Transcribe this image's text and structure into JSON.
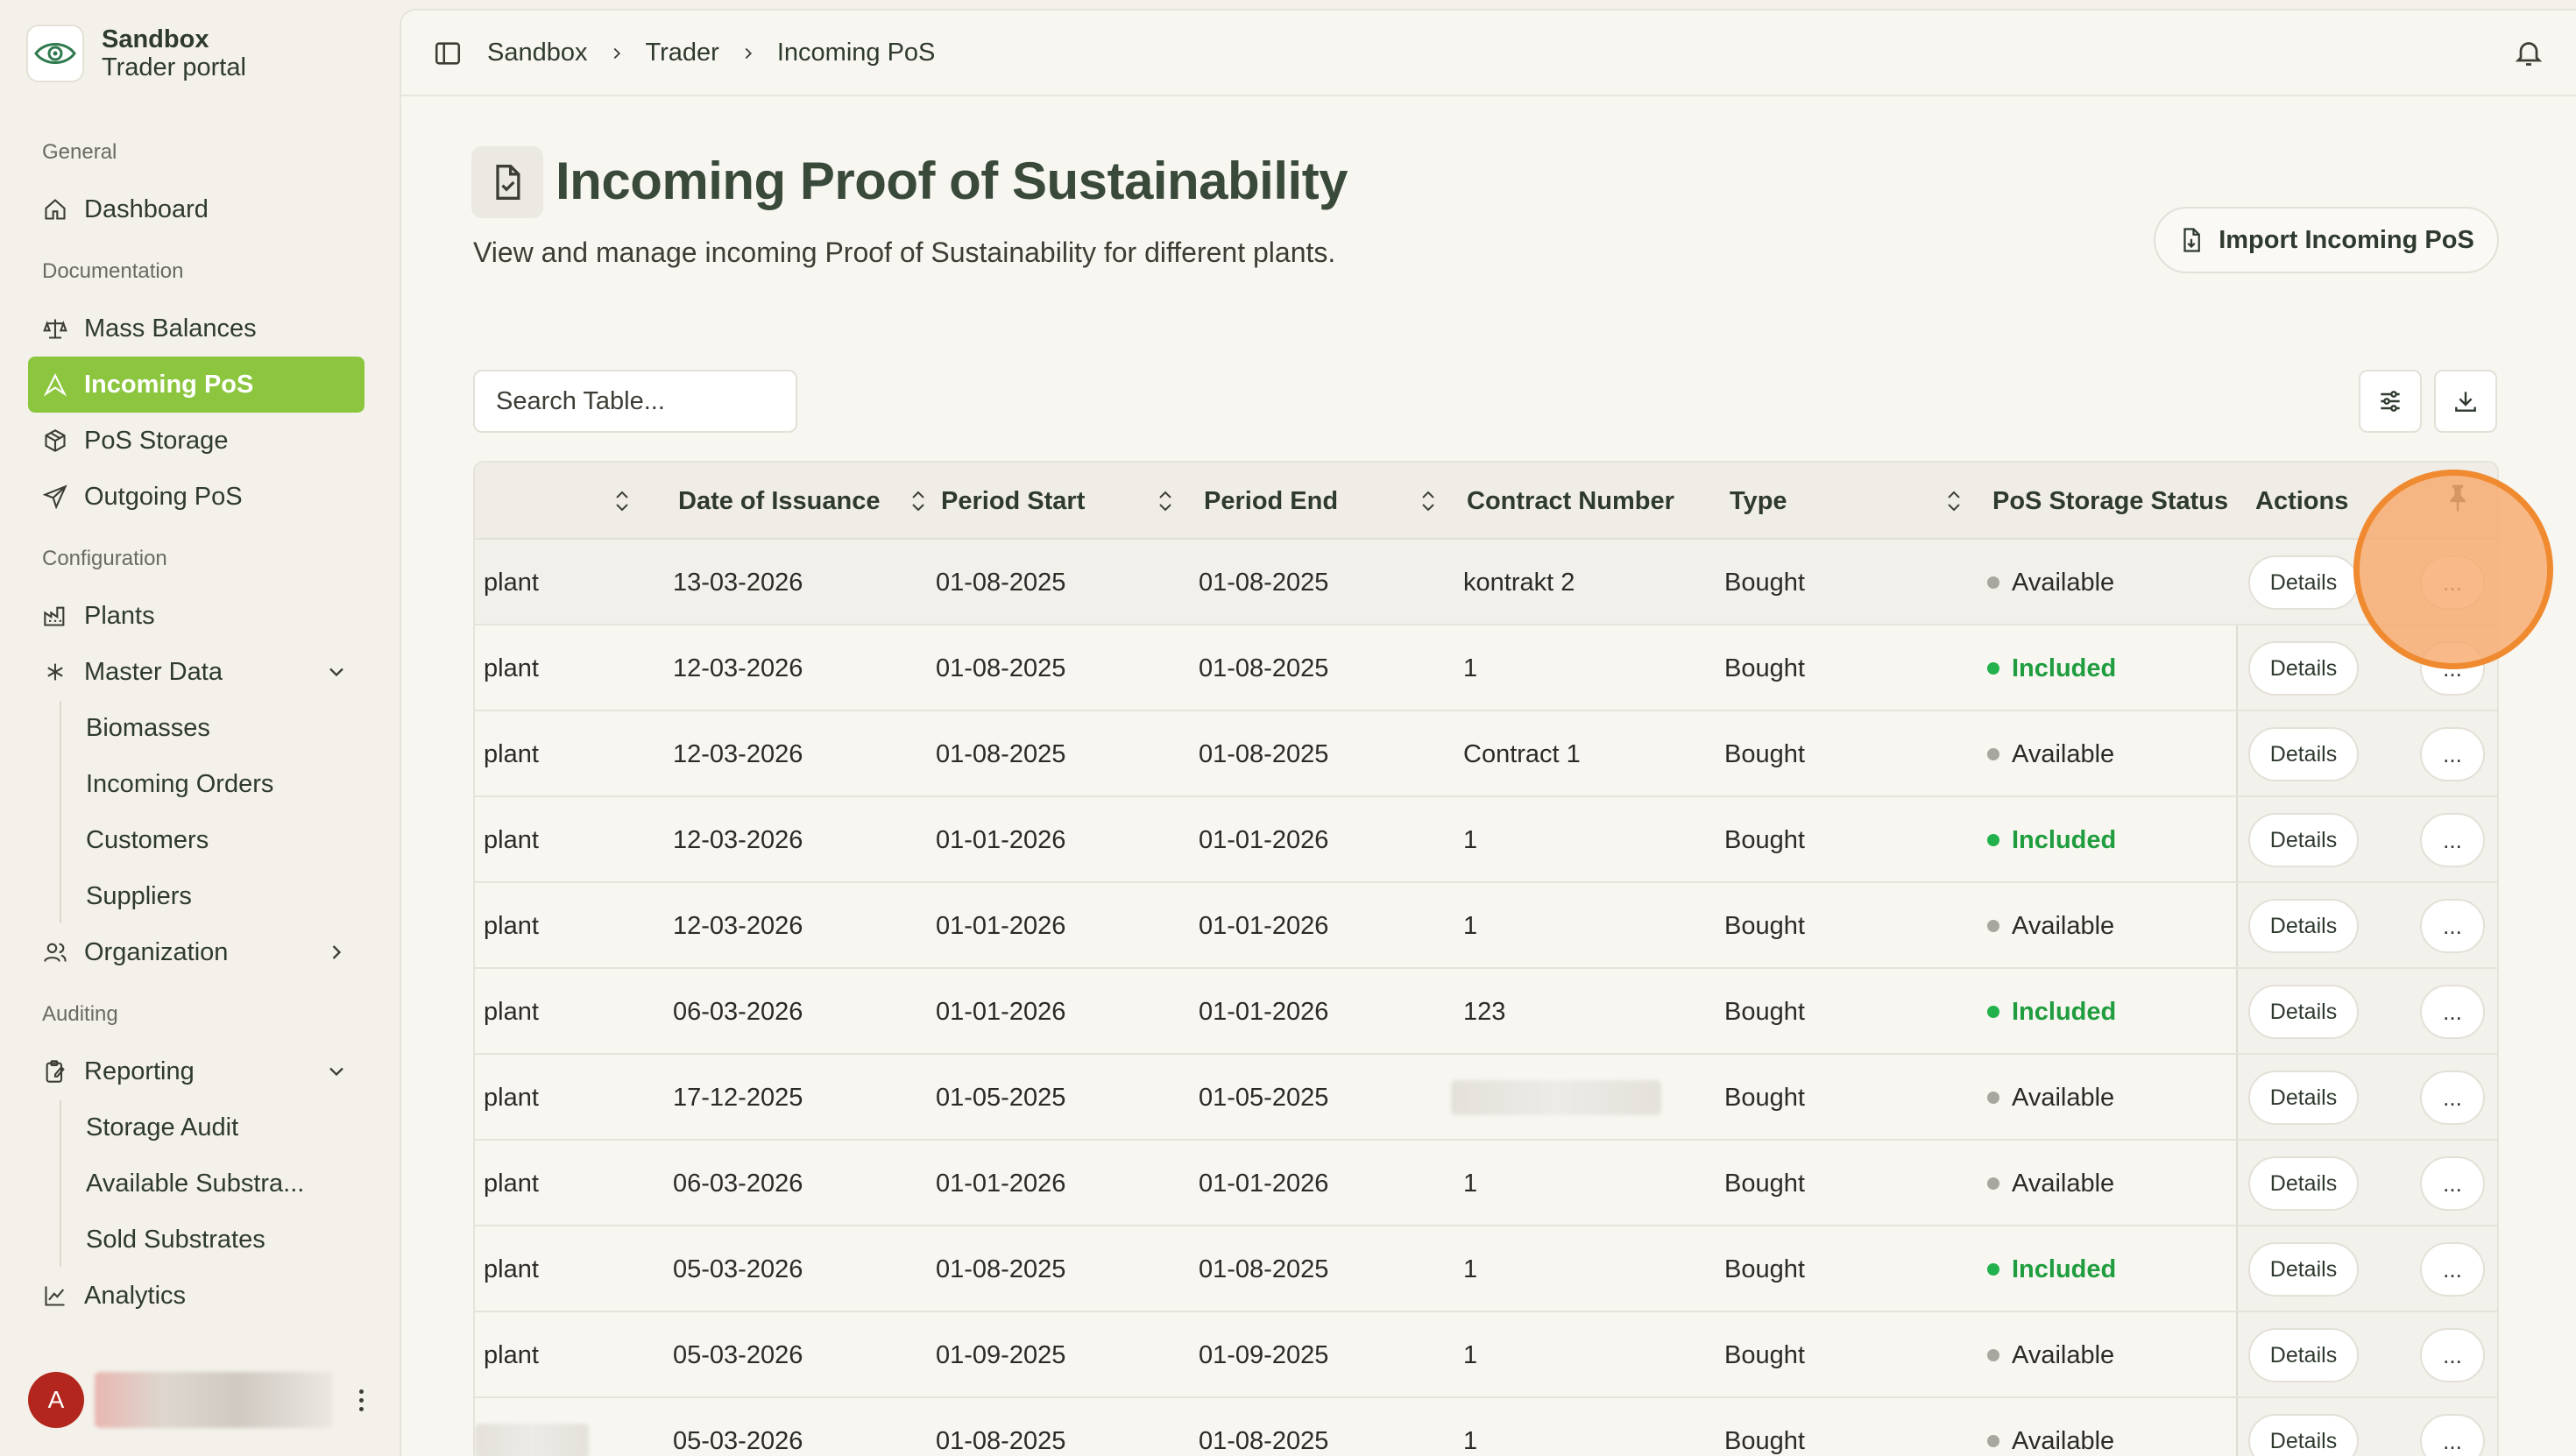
{
  "brand": {
    "name": "Sandbox",
    "subtitle": "Trader portal"
  },
  "sidebar": {
    "sections": {
      "general": "General",
      "documentation": "Documentation",
      "configuration": "Configuration",
      "auditing": "Auditing"
    },
    "items": {
      "dashboard": "Dashboard",
      "mass_balances": "Mass Balances",
      "incoming_pos": "Incoming PoS",
      "pos_storage": "PoS Storage",
      "outgoing_pos": "Outgoing PoS",
      "plants": "Plants",
      "master_data": "Master Data",
      "biomasses": "Biomasses",
      "incoming_orders": "Incoming Orders",
      "customers": "Customers",
      "suppliers": "Suppliers",
      "organization": "Organization",
      "reporting": "Reporting",
      "storage_audit": "Storage Audit",
      "available_substrates": "Available Substra...",
      "sold_substrates": "Sold Substrates",
      "analytics": "Analytics"
    },
    "active_item": "incoming_pos",
    "user_initial": "A"
  },
  "breadcrumb": [
    "Sandbox",
    "Trader",
    "Incoming PoS"
  ],
  "page": {
    "title": "Incoming Proof of Sustainability",
    "subtitle": "View and manage incoming Proof of Sustainability for different plants.",
    "import_button": "Import Incoming PoS"
  },
  "search": {
    "placeholder": "Search Table..."
  },
  "table": {
    "columns": {
      "date_of_issuance": "Date of Issuance",
      "period_start": "Period Start",
      "period_end": "Period End",
      "contract_number": "Contract Number",
      "type": "Type",
      "pos_storage_status": "PoS Storage Status",
      "actions": "Actions"
    },
    "details_label": "Details",
    "more_label": "...",
    "rows": [
      {
        "plant": "plant",
        "issuance": "13-03-2026",
        "start": "01-08-2025",
        "end": "01-08-2025",
        "contract": "kontrakt 2",
        "type": "Bought",
        "status": "Available"
      },
      {
        "plant": "plant",
        "issuance": "12-03-2026",
        "start": "01-08-2025",
        "end": "01-08-2025",
        "contract": "1",
        "type": "Bought",
        "status": "Included"
      },
      {
        "plant": "plant",
        "issuance": "12-03-2026",
        "start": "01-08-2025",
        "end": "01-08-2025",
        "contract": "Contract 1",
        "type": "Bought",
        "status": "Available"
      },
      {
        "plant": "plant",
        "issuance": "12-03-2026",
        "start": "01-01-2026",
        "end": "01-01-2026",
        "contract": "1",
        "type": "Bought",
        "status": "Included"
      },
      {
        "plant": "plant",
        "issuance": "12-03-2026",
        "start": "01-01-2026",
        "end": "01-01-2026",
        "contract": "1",
        "type": "Bought",
        "status": "Available"
      },
      {
        "plant": "plant",
        "issuance": "06-03-2026",
        "start": "01-01-2026",
        "end": "01-01-2026",
        "contract": "123",
        "type": "Bought",
        "status": "Included"
      },
      {
        "plant": "plant",
        "issuance": "17-12-2025",
        "start": "01-05-2025",
        "end": "01-05-2025",
        "contract": "",
        "type": "Bought",
        "status": "Available"
      },
      {
        "plant": "plant",
        "issuance": "06-03-2026",
        "start": "01-01-2026",
        "end": "01-01-2026",
        "contract": "1",
        "type": "Bought",
        "status": "Available"
      },
      {
        "plant": "plant",
        "issuance": "05-03-2026",
        "start": "01-08-2025",
        "end": "01-08-2025",
        "contract": "1",
        "type": "Bought",
        "status": "Included"
      },
      {
        "plant": "plant",
        "issuance": "05-03-2026",
        "start": "01-09-2025",
        "end": "01-09-2025",
        "contract": "1",
        "type": "Bought",
        "status": "Available"
      },
      {
        "plant": "",
        "issuance": "05-03-2026",
        "start": "01-08-2025",
        "end": "01-08-2025",
        "contract": "1",
        "type": "Bought",
        "status": "Available"
      }
    ]
  },
  "colors": {
    "accent": "#8cc63f",
    "included": "#1f9d3f",
    "available_dot": "#a7a7a0",
    "avatar": "#b3261e",
    "click_marker": "#f08a30"
  }
}
